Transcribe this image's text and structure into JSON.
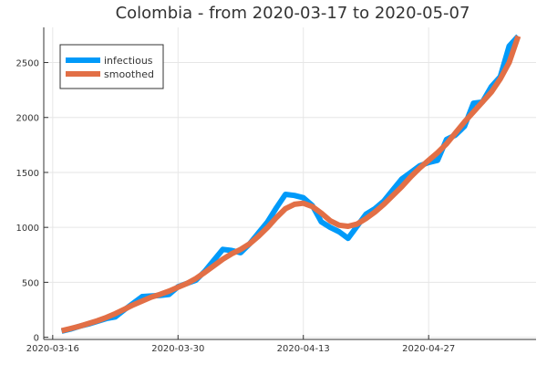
{
  "chart_data": {
    "type": "line",
    "title": "Colombia - from 2020-03-17 to 2020-05-07",
    "xlabel": "",
    "ylabel": "",
    "x_ticks": [
      "2020-03-16",
      "2020-03-30",
      "2020-04-13",
      "2020-04-27"
    ],
    "y_ticks": [
      0,
      500,
      1000,
      1500,
      2000,
      2500
    ],
    "xlim": [
      "2020-03-15",
      "2020-05-09"
    ],
    "ylim": [
      -20,
      2820
    ],
    "grid": true,
    "legend_position": "top-left",
    "x": [
      "2020-03-17",
      "2020-03-18",
      "2020-03-19",
      "2020-03-20",
      "2020-03-21",
      "2020-03-22",
      "2020-03-23",
      "2020-03-24",
      "2020-03-25",
      "2020-03-26",
      "2020-03-27",
      "2020-03-28",
      "2020-03-29",
      "2020-03-30",
      "2020-03-31",
      "2020-04-01",
      "2020-04-02",
      "2020-04-03",
      "2020-04-04",
      "2020-04-05",
      "2020-04-06",
      "2020-04-07",
      "2020-04-08",
      "2020-04-09",
      "2020-04-10",
      "2020-04-11",
      "2020-04-12",
      "2020-04-13",
      "2020-04-14",
      "2020-04-15",
      "2020-04-16",
      "2020-04-17",
      "2020-04-18",
      "2020-04-19",
      "2020-04-20",
      "2020-04-21",
      "2020-04-22",
      "2020-04-23",
      "2020-04-24",
      "2020-04-25",
      "2020-04-26",
      "2020-04-27",
      "2020-04-28",
      "2020-04-29",
      "2020-04-30",
      "2020-05-01",
      "2020-05-02",
      "2020-05-03",
      "2020-05-04",
      "2020-05-05",
      "2020-05-06",
      "2020-05-07"
    ],
    "series": [
      {
        "name": "infectious",
        "color": "#009af9",
        "values": [
          55,
          75,
          100,
          120,
          145,
          170,
          185,
          250,
          310,
          370,
          375,
          380,
          390,
          460,
          490,
          520,
          600,
          700,
          800,
          790,
          770,
          850,
          950,
          1050,
          1180,
          1300,
          1290,
          1270,
          1200,
          1050,
          1000,
          960,
          900,
          1010,
          1120,
          1170,
          1240,
          1340,
          1440,
          1500,
          1560,
          1590,
          1610,
          1800,
          1840,
          1920,
          2130,
          2140,
          2280,
          2370,
          2650,
          2740
        ]
      },
      {
        "name": "smoothed",
        "color": "#e26f46",
        "values": [
          60,
          80,
          100,
          125,
          150,
          180,
          215,
          255,
          295,
          330,
          365,
          390,
          420,
          455,
          490,
          535,
          590,
          650,
          710,
          760,
          800,
          850,
          920,
          1000,
          1090,
          1170,
          1210,
          1220,
          1190,
          1130,
          1060,
          1020,
          1010,
          1030,
          1080,
          1140,
          1210,
          1290,
          1370,
          1460,
          1540,
          1610,
          1680,
          1760,
          1860,
          1960,
          2050,
          2140,
          2230,
          2350,
          2500,
          2740
        ]
      }
    ]
  }
}
